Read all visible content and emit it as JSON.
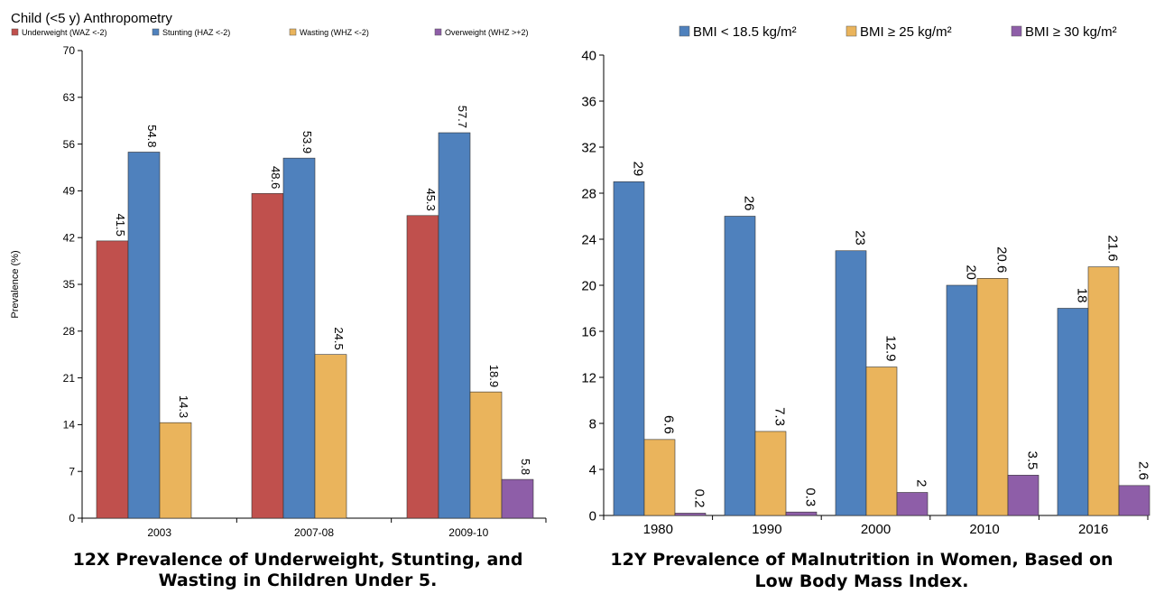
{
  "chart_data": [
    {
      "type": "bar",
      "title": "Child (<5 y) Anthropometry",
      "ylabel": "Prevalence (%)",
      "xlabel": "",
      "ylim": [
        0,
        70
      ],
      "yticks": [
        "0",
        "7",
        "14",
        "21",
        "28",
        "35",
        "42",
        "49",
        "56",
        "63",
        "70"
      ],
      "categories": [
        "2003",
        "2007-08",
        "2009-10"
      ],
      "legend_position": "top",
      "grid": false,
      "series": [
        {
          "name": "Underweight (WAZ <-2)",
          "color": "#c0504d",
          "values": [
            41.5,
            48.6,
            45.3
          ],
          "labels": [
            "41.5",
            "48.6",
            "45.3"
          ]
        },
        {
          "name": "Stunting (HAZ <-2)",
          "color": "#4f81bd",
          "values": [
            54.8,
            53.9,
            57.7
          ],
          "labels": [
            "54.8",
            "53.9",
            "57.7"
          ]
        },
        {
          "name": "Wasting (WHZ <-2)",
          "color": "#eab45c",
          "values": [
            14.3,
            24.5,
            18.9
          ],
          "labels": [
            "14.3",
            "24.5",
            "18.9"
          ]
        },
        {
          "name": "Overweight (WHZ >+2)",
          "color": "#8e5ea8",
          "values": [
            null,
            null,
            5.8
          ],
          "labels": [
            null,
            null,
            "5.8"
          ]
        }
      ],
      "caption": [
        "12X Prevalence of Underweight, Stunting, and",
        "Wasting in Children Under 5."
      ]
    },
    {
      "type": "bar",
      "title": "",
      "ylabel": "",
      "xlabel": "",
      "ylim": [
        0,
        40
      ],
      "yticks": [
        "0",
        "4",
        "8",
        "12",
        "16",
        "20",
        "24",
        "28",
        "32",
        "36",
        "40"
      ],
      "categories": [
        "1980",
        "1990",
        "2000",
        "2010",
        "2016"
      ],
      "legend_position": "top",
      "grid": false,
      "series": [
        {
          "name": "BMI < 18.5 kg/m²",
          "color": "#4f81bd",
          "values": [
            29,
            26,
            23,
            20,
            18
          ],
          "labels": [
            "29",
            "26",
            "23",
            "20",
            "18"
          ]
        },
        {
          "name": "BMI ≥ 25 kg/m²",
          "color": "#eab45c",
          "values": [
            6.6,
            7.3,
            12.9,
            20.6,
            21.6
          ],
          "labels": [
            "6.6",
            "7.3",
            "12.9",
            "20.6",
            "21.6"
          ]
        },
        {
          "name": "BMI ≥ 30 kg/m²",
          "color": "#8e5ea8",
          "values": [
            0.2,
            0.3,
            2,
            3.5,
            2.6
          ],
          "labels": [
            "0.2",
            "0.3",
            "2",
            "3.5",
            "2.6"
          ]
        }
      ],
      "caption": [
        "12Y Prevalence of Malnutrition in Women, Based on",
        "Low Body Mass Index."
      ]
    }
  ]
}
